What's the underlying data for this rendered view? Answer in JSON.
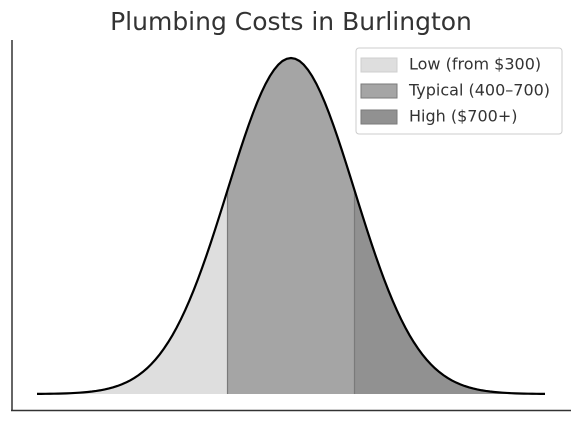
{
  "chart_data": {
    "type": "density",
    "title": "Plumbing Costs in Burlington",
    "mean": 550,
    "sd": 150,
    "xlim": [
      -50,
      1150
    ],
    "curve_color": "#000000",
    "legend": "upper right",
    "series": [
      {
        "name": "Low (from $300)",
        "color": "#dedede",
        "range": [
          -50,
          400
        ]
      },
      {
        "name": "Typical (400–700)",
        "color": "#a5a5a5",
        "range": [
          400,
          700
        ]
      },
      {
        "name": "High ($700+)",
        "color": "#919191",
        "range": [
          700,
          1150
        ]
      }
    ]
  }
}
